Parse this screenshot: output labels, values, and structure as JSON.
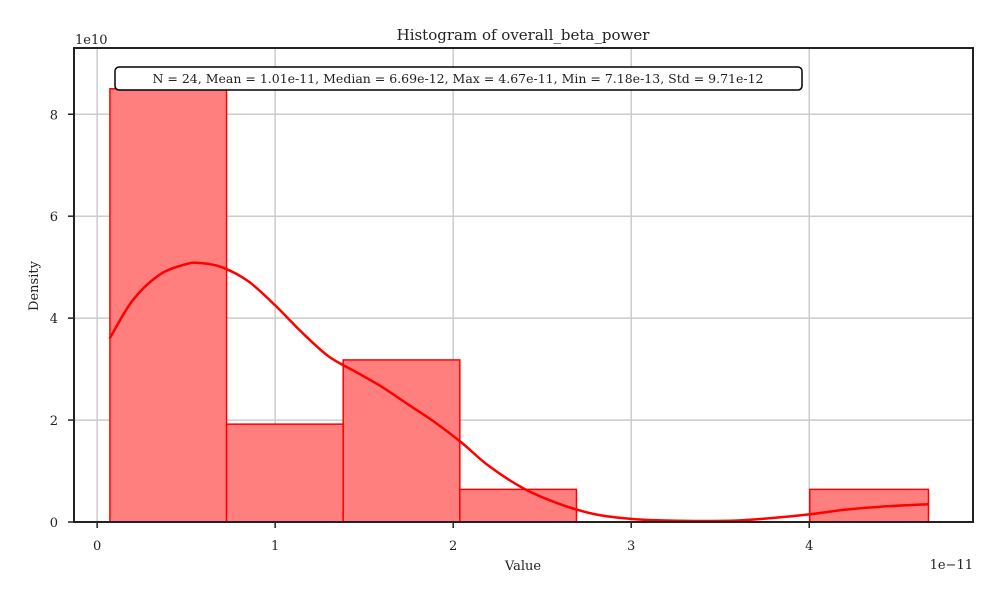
{
  "chart_data": {
    "type": "histogram",
    "title": "Histogram of overall_beta_power",
    "xlabel": "Value",
    "ylabel": "Density",
    "x_offset_label": "1e−11",
    "y_offset_label": "1e10",
    "xlim": [
      -0.13,
      4.92
    ],
    "ylim": [
      0,
      9.3
    ],
    "xticks": [
      0,
      1,
      2,
      3,
      4
    ],
    "yticks": [
      0,
      2,
      4,
      6,
      8
    ],
    "grid": true,
    "bins": [
      {
        "x0": 0.0718,
        "x1": 0.727,
        "density": 8.5
      },
      {
        "x0": 0.727,
        "x1": 1.3822,
        "density": 1.92
      },
      {
        "x0": 1.3822,
        "x1": 2.0374,
        "density": 3.18
      },
      {
        "x0": 2.0374,
        "x1": 2.6926,
        "density": 0.64
      },
      {
        "x0": 2.6926,
        "x1": 3.3478,
        "density": 0
      },
      {
        "x0": 3.3478,
        "x1": 4.003,
        "density": 0
      },
      {
        "x0": 4.003,
        "x1": 4.67,
        "density": 0.64
      }
    ],
    "kde": {
      "x": [
        0.07,
        0.2,
        0.35,
        0.5,
        0.58,
        0.7,
        0.85,
        1.0,
        1.15,
        1.3,
        1.45,
        1.6,
        1.75,
        1.9,
        2.05,
        2.2,
        2.4,
        2.6,
        2.8,
        3.0,
        3.2,
        3.4,
        3.6,
        3.8,
        4.0,
        4.2,
        4.4,
        4.67
      ],
      "y": [
        3.6,
        4.35,
        4.85,
        5.06,
        5.08,
        5.0,
        4.72,
        4.25,
        3.72,
        3.25,
        2.95,
        2.65,
        2.3,
        1.95,
        1.55,
        1.1,
        0.65,
        0.35,
        0.15,
        0.06,
        0.03,
        0.02,
        0.03,
        0.08,
        0.15,
        0.24,
        0.3,
        0.35
      ]
    },
    "stats_text": "N = 24, Mean = 1.01e-11, Median = 6.69e-12, Max = 4.67e-11, Min = 7.18e-13, Std = 9.71e-12",
    "colors": {
      "bar_fill": "#ff7f7f",
      "bar_edge": "#ff0000",
      "kde_line": "#ff0000",
      "grid": "#cccccc",
      "axes": "#222222"
    }
  }
}
